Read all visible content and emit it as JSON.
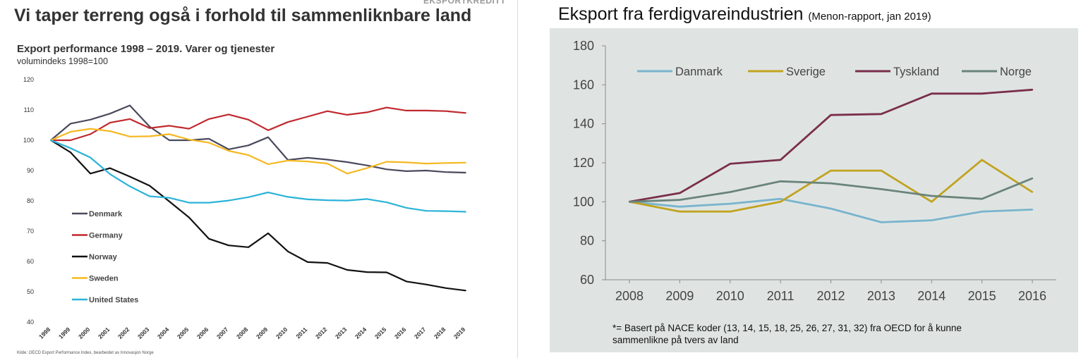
{
  "brand_fragment": "EKSPORTKREDITT",
  "left": {
    "title": "Vi taper terreng også i forhold til sammenliknbare land",
    "subtitle": "Export performance 1998 – 2019. Varer og tjenester",
    "subtitle2": "volumindeks 1998=100",
    "source": "Kilde: OECD Export Performance Index, bearbeidet av Innovasjon Norge"
  },
  "right": {
    "title": "Eksport fra ferdigvareindustrien",
    "title_small": "(Menon-rapport, jan 2019)",
    "footnote_line1": "*= Basert på NACE koder (13, 14, 15, 18, 25, 26, 27, 31, 32) fra OECD for å kunne",
    "footnote_line2": "sammenlikne på tvers av land"
  },
  "chart_data": [
    {
      "type": "line",
      "title": "Export performance 1998 – 2019. Varer og tjenester",
      "ylabel": "volumindeks 1998=100",
      "x": [
        "1998",
        "1999",
        "2000",
        "2001",
        "2002",
        "2003",
        "2004",
        "2005",
        "2006",
        "2007",
        "2008",
        "2009",
        "2010",
        "2011",
        "2012",
        "2013",
        "2014",
        "2015",
        "2016",
        "2017",
        "2018",
        "2019"
      ],
      "ylim": [
        40,
        120
      ],
      "yticks": [
        40,
        50,
        60,
        70,
        80,
        90,
        100,
        110,
        120
      ],
      "grid": false,
      "legend": "left, stacked",
      "series": [
        {
          "name": "Denmark",
          "color": "#4a4a5e",
          "values": [
            100,
            105.5,
            106.8,
            108.8,
            111.5,
            104.5,
            100,
            100,
            100.5,
            97,
            98.3,
            101,
            93.5,
            94.2,
            93.6,
            92.8,
            91.7,
            90.4,
            89.8,
            90,
            89.5,
            89.3
          ]
        },
        {
          "name": "Germany",
          "color": "#c0282d",
          "values": [
            100,
            100,
            102,
            105.8,
            107,
            104,
            104.8,
            103.8,
            107,
            108.5,
            106.8,
            103.3,
            106,
            107.8,
            109.6,
            108.4,
            109.2,
            110.8,
            109.8,
            109.8,
            109.6,
            109
          ]
        },
        {
          "name": "Norway",
          "color": "#111111",
          "values": [
            100,
            96,
            89,
            90.8,
            88,
            85,
            79.8,
            74.5,
            67.5,
            65.3,
            64.7,
            69.3,
            63.3,
            59.8,
            59.5,
            57.2,
            56.5,
            56.4,
            53.4,
            52.4,
            51.2,
            50.4
          ]
        },
        {
          "name": "Sweden",
          "color": "#f5b820",
          "values": [
            100,
            102.8,
            103.8,
            103,
            101.2,
            101.3,
            102,
            100.2,
            99.2,
            96.5,
            95.1,
            92.1,
            93.3,
            93,
            92.3,
            89,
            90.8,
            92.9,
            92.7,
            92.3,
            92.5,
            92.6
          ]
        },
        {
          "name": "United States",
          "color": "#2bb3d8",
          "values": [
            100,
            97.4,
            94.3,
            88.8,
            84.8,
            81.5,
            81,
            79.4,
            79.4,
            80.1,
            81.2,
            82.8,
            81.3,
            80.5,
            80.2,
            80.1,
            80.6,
            79.5,
            77.7,
            76.7,
            76.6,
            76.4
          ]
        }
      ]
    },
    {
      "type": "line",
      "title": "Eksport fra ferdigvareindustrien",
      "x": [
        "2008",
        "2009",
        "2010",
        "2011",
        "2012",
        "2013",
        "2014",
        "2015",
        "2016"
      ],
      "ylim": [
        60,
        180
      ],
      "yticks": [
        60,
        80,
        100,
        120,
        140,
        160,
        180
      ],
      "grid": false,
      "legend": "top, horizontal",
      "series": [
        {
          "name": "Danmark",
          "color": "#79b4cc",
          "values": [
            100,
            97.5,
            99,
            101.5,
            96.5,
            89.5,
            90.5,
            95,
            96
          ]
        },
        {
          "name": "Sverige",
          "color": "#c1a320",
          "values": [
            100,
            95,
            95,
            100,
            116,
            116,
            100,
            121.5,
            105
          ]
        },
        {
          "name": "Tyskland",
          "color": "#7a2e4a",
          "values": [
            100,
            104.5,
            119.5,
            121.5,
            144.5,
            145,
            155.5,
            155.5,
            157.5
          ]
        },
        {
          "name": "Norge",
          "color": "#6a847a",
          "values": [
            100,
            101,
            105,
            110.5,
            109.5,
            106.5,
            103,
            101.5,
            112
          ]
        }
      ]
    }
  ]
}
